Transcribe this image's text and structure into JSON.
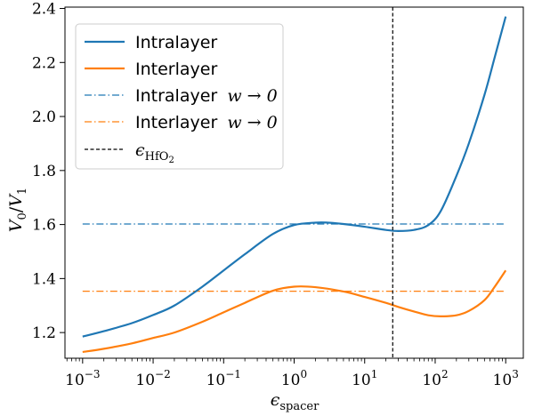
{
  "chart_data": {
    "type": "line",
    "xscale": "log",
    "xlim": [
      0.000562,
      1778
    ],
    "ylim": [
      1.105,
      2.405
    ],
    "xticks": [
      0.001,
      0.01,
      0.1,
      1,
      10,
      100,
      1000
    ],
    "xtick_labels": [
      {
        "base": "10",
        "exp": "−3"
      },
      {
        "base": "10",
        "exp": "−2"
      },
      {
        "base": "10",
        "exp": "−1"
      },
      {
        "base": "10",
        "exp": "0"
      },
      {
        "base": "10",
        "exp": "1"
      },
      {
        "base": "10",
        "exp": "2"
      },
      {
        "base": "10",
        "exp": "3"
      }
    ],
    "yticks": [
      1.2,
      1.4,
      1.6,
      1.8,
      2.0,
      2.2,
      2.4
    ],
    "ytick_labels": [
      "1.2",
      "1.4",
      "1.6",
      "1.8",
      "2.0",
      "2.2",
      "2.4"
    ],
    "xlabel": {
      "main": "ϵ",
      "sub": "spacer"
    },
    "ylabel": {
      "v0": "V",
      "v0_sub": "0",
      "slash": "/",
      "v1": "V",
      "v1_sub": "1"
    },
    "grid": false,
    "legend_position": "top-left",
    "series": [
      {
        "name": "Intralayer",
        "style": "solid",
        "color": "#1f77b4",
        "points": [
          [
            0.001,
            1.185
          ],
          [
            0.002,
            1.205
          ],
          [
            0.005,
            1.235
          ],
          [
            0.01,
            1.265
          ],
          [
            0.02,
            1.3
          ],
          [
            0.05,
            1.37
          ],
          [
            0.1,
            1.43
          ],
          [
            0.2,
            1.49
          ],
          [
            0.5,
            1.565
          ],
          [
            1,
            1.598
          ],
          [
            2,
            1.607
          ],
          [
            3,
            1.607
          ],
          [
            5,
            1.602
          ],
          [
            10,
            1.592
          ],
          [
            20,
            1.58
          ],
          [
            30,
            1.576
          ],
          [
            50,
            1.58
          ],
          [
            80,
            1.598
          ],
          [
            120,
            1.65
          ],
          [
            200,
            1.78
          ],
          [
            300,
            1.9
          ],
          [
            500,
            2.08
          ],
          [
            700,
            2.22
          ],
          [
            1000,
            2.37
          ]
        ]
      },
      {
        "name": "Interlayer",
        "style": "solid",
        "color": "#ff7f0e",
        "points": [
          [
            0.001,
            1.128
          ],
          [
            0.002,
            1.14
          ],
          [
            0.005,
            1.16
          ],
          [
            0.01,
            1.18
          ],
          [
            0.02,
            1.2
          ],
          [
            0.05,
            1.24
          ],
          [
            0.1,
            1.275
          ],
          [
            0.2,
            1.31
          ],
          [
            0.5,
            1.355
          ],
          [
            1,
            1.37
          ],
          [
            2,
            1.368
          ],
          [
            5,
            1.352
          ],
          [
            10,
            1.332
          ],
          [
            20,
            1.31
          ],
          [
            30,
            1.295
          ],
          [
            50,
            1.278
          ],
          [
            80,
            1.264
          ],
          [
            120,
            1.26
          ],
          [
            200,
            1.264
          ],
          [
            300,
            1.28
          ],
          [
            500,
            1.32
          ],
          [
            700,
            1.37
          ],
          [
            1000,
            1.43
          ]
        ]
      },
      {
        "name": "Intralayer",
        "name_math": "w → 0",
        "style": "dashdot",
        "color": "#1f77b4",
        "points": [
          [
            0.001,
            1.602
          ],
          [
            1000,
            1.602
          ]
        ]
      },
      {
        "name": "Interlayer",
        "name_math": "w → 0",
        "style": "dashdot",
        "color": "#ff7f0e",
        "points": [
          [
            0.001,
            1.353
          ],
          [
            1000,
            1.353
          ]
        ]
      }
    ],
    "vline": {
      "x": 25,
      "color": "#000000",
      "style": "dashed",
      "legend": {
        "main": "ϵ",
        "sub": "HfO",
        "subsub": "2"
      }
    }
  }
}
